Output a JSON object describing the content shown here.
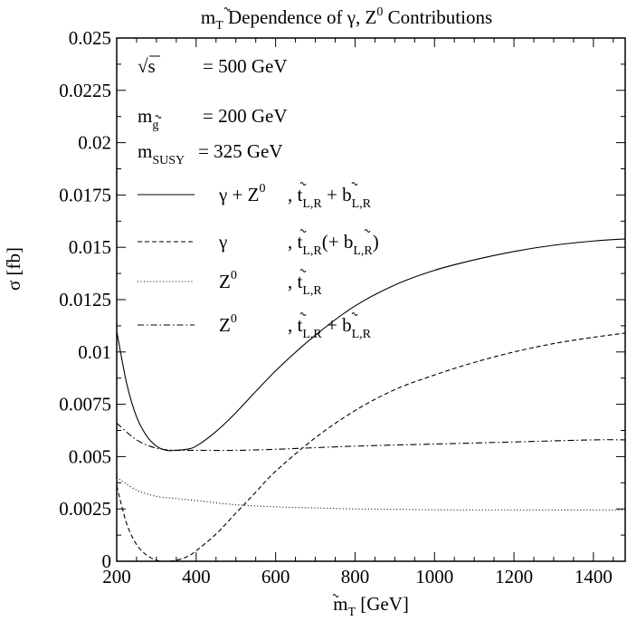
{
  "chart_data": {
    "type": "line",
    "title": {
      "text": "m",
      "sub": "T",
      "rest": " Dependence of γ, Z",
      "sup": "0",
      "tail": " Contributions"
    },
    "xlabel": {
      "text": "m",
      "sub": "T",
      "rest": " [GeV]"
    },
    "ylabel": "σ [fb]",
    "xlim": [
      200,
      1480
    ],
    "ylim": [
      0,
      0.025
    ],
    "x_ticks": [
      "200",
      "400",
      "600",
      "800",
      "1000",
      "1200",
      "1400"
    ],
    "y_ticks": [
      "0",
      "0.0025",
      "0.005",
      "0.0075",
      "0.01",
      "0.0125",
      "0.015",
      "0.0175",
      "0.02",
      "0.0225",
      "0.025"
    ],
    "params": [
      {
        "sym": "√s",
        "sub": "",
        "value": "= 500 GeV"
      },
      {
        "sym": "m",
        "sub": "g",
        "value": "= 200 GeV"
      },
      {
        "sym": "m",
        "sub": "SUSY",
        "value": "= 325 GeV"
      }
    ],
    "series": [
      {
        "name": "γ + Z⁰ , t̃L,R + b̃L,R",
        "style": "solid",
        "x": [
          200,
          225,
          250,
          275,
          300,
          325,
          350,
          375,
          400,
          450,
          500,
          600,
          700,
          800,
          900,
          1000,
          1100,
          1200,
          1300,
          1400,
          1480
        ],
        "y": [
          0.011,
          0.0085,
          0.0069,
          0.006,
          0.0055,
          0.0053,
          0.0053,
          0.00535,
          0.0055,
          0.0062,
          0.0071,
          0.0091,
          0.0108,
          0.0122,
          0.0132,
          0.0139,
          0.0144,
          0.0148,
          0.0151,
          0.0153,
          0.0154
        ]
      },
      {
        "name": "γ , t̃L,R(+ b̃L,R)",
        "style": "dashed",
        "x": [
          200,
          225,
          250,
          275,
          300,
          325,
          350,
          375,
          400,
          450,
          500,
          550,
          600,
          700,
          800,
          900,
          1000,
          1100,
          1200,
          1300,
          1400,
          1480
        ],
        "y": [
          0.0036,
          0.0018,
          0.0008,
          0.0003,
          5e-05,
          0.0,
          5e-05,
          0.0002,
          0.0005,
          0.0013,
          0.0023,
          0.0033,
          0.0043,
          0.0059,
          0.0072,
          0.0082,
          0.0089,
          0.0095,
          0.01,
          0.0104,
          0.0107,
          0.0109
        ]
      },
      {
        "name": "Z⁰ , t̃L,R",
        "style": "dotted",
        "x": [
          200,
          250,
          300,
          350,
          400,
          500,
          600,
          700,
          800,
          900,
          1000,
          1100,
          1200,
          1300,
          1400,
          1480
        ],
        "y": [
          0.004,
          0.0034,
          0.0031,
          0.003,
          0.0029,
          0.0027,
          0.0026,
          0.00255,
          0.0025,
          0.00248,
          0.00246,
          0.00245,
          0.00245,
          0.00245,
          0.00245,
          0.00245
        ]
      },
      {
        "name": "Z⁰ , t̃L,R + b̃L,R",
        "style": "dashdot",
        "x": [
          200,
          250,
          300,
          350,
          400,
          500,
          600,
          800,
          1000,
          1200,
          1400,
          1480
        ],
        "y": [
          0.0066,
          0.0058,
          0.0054,
          0.0053,
          0.0053,
          0.0053,
          0.00535,
          0.0055,
          0.0056,
          0.0057,
          0.0058,
          0.0058
        ]
      }
    ],
    "legend_entries": [
      {
        "a": "γ + Z",
        "asup": "0",
        "b": ", t",
        "bsub": "L,R",
        "c": " + b",
        "csub": "L,R",
        "d": ""
      },
      {
        "a": "γ",
        "asup": "",
        "b": ", t",
        "bsub": "L,R",
        "c": "(+ b",
        "csub": "L,R",
        "d": ")"
      },
      {
        "a": "Z",
        "asup": "0",
        "b": ", t",
        "bsub": "L,R",
        "c": "",
        "csub": "",
        "d": ""
      },
      {
        "a": "Z",
        "asup": "0",
        "b": ", t",
        "bsub": "L,R",
        "c": " + b",
        "csub": "L,R",
        "d": ""
      }
    ],
    "grid": false,
    "legend_position": "top-left"
  }
}
